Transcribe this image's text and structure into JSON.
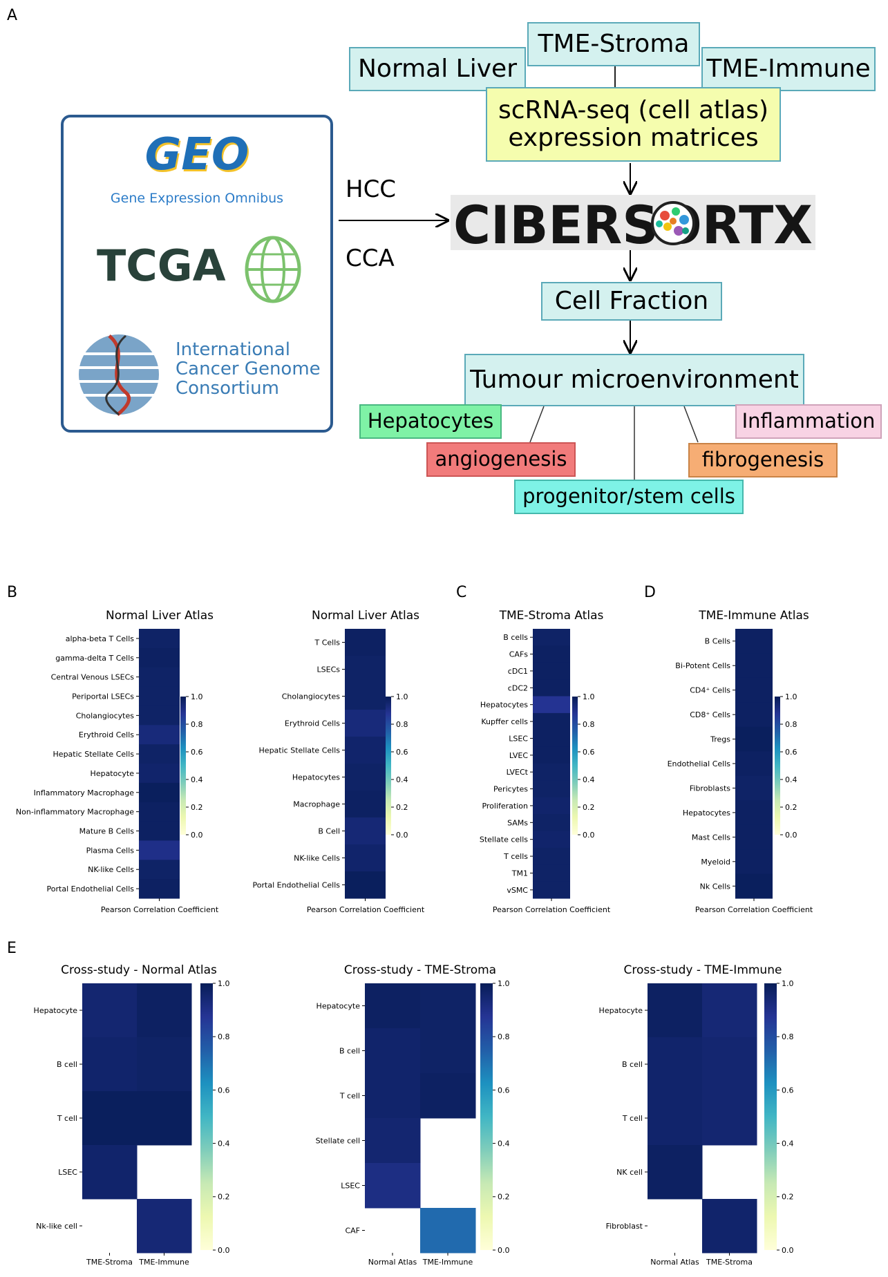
{
  "panel_letters": {
    "a": "A",
    "b": "B",
    "c": "C",
    "d": "D",
    "e": "E"
  },
  "diagram": {
    "atlases": {
      "normal": "Normal Liver",
      "stroma": "TME-Stroma",
      "immune": "TME-Immune"
    },
    "matrices": [
      "scRNA-seq (cell atlas)",
      "expression matrices"
    ],
    "sources": {
      "geo_logo": "GEO",
      "geo_sub": "Gene Expression Omnibus",
      "tcga": "TCGA",
      "icgc": [
        "International",
        "Cancer Genome",
        "Consortium"
      ]
    },
    "arrow_labels": {
      "top": "HCC",
      "bottom": "CCA"
    },
    "cibersort": "CIBERSORTX",
    "cell_fraction": "Cell Fraction",
    "tme": "Tumour microenvironment",
    "features": {
      "hepatocytes": "Hepatocytes",
      "angiogenesis": "angiogenesis",
      "progenitor": "progenitor/stem cells",
      "fibrogenesis": "fibrogenesis",
      "inflammation": "Inflammation"
    },
    "colors": {
      "box_teal": "#d4f1ef",
      "box_yellow": "#f5fdae",
      "hepatocytes": "#7ff2a6",
      "angiogenesis": "#f17b7b",
      "progenitor": "#7ef2e6",
      "fibrogenesis": "#f6ad74",
      "inflammation": "#f8d3e4"
    }
  },
  "colorbar": {
    "ticks_small": [
      "1.0",
      "0.8",
      "0.6",
      "0.4",
      "0.2",
      "0.0"
    ],
    "ticks_large": [
      "1.0",
      "0.8",
      "0.6",
      "0.4",
      "0.2",
      "0.0"
    ]
  },
  "chart_data": [
    {
      "id": "b1",
      "type": "heatmap",
      "title": "Normal Liver Atlas",
      "xlabel": "Pearson Correlation Coefficient",
      "vmin": 0,
      "vmax": 1,
      "rows": [
        "alpha-beta T Cells",
        "gamma-delta T Cells",
        "Central Venous LSECs",
        "Periportal LSECs",
        "Cholangiocytes",
        "Erythroid Cells",
        "Hepatic Stellate Cells",
        "Hepatocyte",
        "Inflammatory Macrophage",
        "Non-inflammatory Macrophage",
        "Mature B Cells",
        "Plasma Cells",
        "NK-like Cells",
        "Portal Endothelial Cells"
      ],
      "values": [
        0.97,
        0.98,
        0.97,
        0.97,
        0.97,
        0.93,
        0.97,
        0.96,
        0.99,
        0.98,
        0.98,
        0.9,
        0.97,
        0.98
      ]
    },
    {
      "id": "b2",
      "type": "heatmap",
      "title": "Normal Liver Atlas",
      "xlabel": "Pearson Correlation Coefficient",
      "vmin": 0,
      "vmax": 1,
      "rows": [
        "T Cells",
        "LSECs",
        "Cholangiocytes",
        "Erythroid Cells",
        "Hepatic Stellate Cells",
        "Hepatocytes",
        "Macrophage",
        "B Cell",
        "NK-like Cells",
        "Portal Endothelial Cells"
      ],
      "values": [
        0.98,
        0.97,
        0.97,
        0.93,
        0.96,
        0.97,
        0.98,
        0.94,
        0.96,
        0.99
      ]
    },
    {
      "id": "c",
      "type": "heatmap",
      "title": "TME-Stroma Atlas",
      "xlabel": "Pearson Correlation Coefficient",
      "vmin": 0,
      "vmax": 1,
      "rows": [
        "B cells",
        "CAFs",
        "cDC1",
        "cDC2",
        "Hepatocytes",
        "Kupffer cells",
        "LSEC",
        "LVEC",
        "LVECt",
        "Pericytes",
        "Proliferation",
        "SAMs",
        "Stellate cells",
        "T cells",
        "TM1",
        "vSMC"
      ],
      "values": [
        0.97,
        0.98,
        0.98,
        0.98,
        0.88,
        0.98,
        0.98,
        0.98,
        0.97,
        0.97,
        0.96,
        0.97,
        0.96,
        0.97,
        0.97,
        0.97
      ]
    },
    {
      "id": "d",
      "type": "heatmap",
      "title": "TME-Immune Atlas",
      "xlabel": "Pearson Correlation Coefficient",
      "vmin": 0,
      "vmax": 1,
      "rows": [
        "B Cells",
        "Bi-Potent Cells",
        "CD4⁺ Cells",
        "CD8⁺ Cells",
        "Tregs",
        "Endothelial Cells",
        "Fibroblasts",
        "Hepatocytes",
        "Mast Cells",
        "Myeloid",
        "Nk Cells"
      ],
      "values": [
        0.98,
        0.98,
        0.98,
        0.98,
        0.99,
        0.98,
        0.97,
        0.98,
        0.98,
        0.98,
        0.99
      ]
    },
    {
      "id": "e1",
      "type": "heatmap",
      "title": "Cross-study - Normal Atlas",
      "vmin": 0,
      "vmax": 1,
      "rows": [
        "Hepatocyte",
        "B cell",
        "T cell",
        "LSEC",
        "Nk-like cell"
      ],
      "columns": [
        "TME-Stroma",
        "TME-Immune"
      ],
      "values": [
        [
          0.95,
          0.98
        ],
        [
          0.96,
          0.97
        ],
        [
          0.99,
          0.99
        ],
        [
          0.96,
          null
        ],
        [
          null,
          0.94
        ]
      ]
    },
    {
      "id": "e2",
      "type": "heatmap",
      "title": "Cross-study - TME-Stroma",
      "vmin": 0,
      "vmax": 1,
      "rows": [
        "Hepatocyte",
        "B cell",
        "T cell",
        "Stellate cell",
        "LSEC",
        "CAF"
      ],
      "columns": [
        "Normal Atlas",
        "TME-Immune"
      ],
      "values": [
        [
          0.98,
          0.97
        ],
        [
          0.96,
          0.97
        ],
        [
          0.96,
          0.98
        ],
        [
          0.95,
          null
        ],
        [
          0.91,
          null
        ],
        [
          null,
          0.72
        ]
      ]
    },
    {
      "id": "e3",
      "type": "heatmap",
      "title": "Cross-study - TME-Immune",
      "vmin": 0,
      "vmax": 1,
      "rows": [
        "Hepatocyte",
        "B cell",
        "T cell",
        "NK cell",
        "Fibroblast"
      ],
      "columns": [
        "Normal Atlas",
        "TME-Stroma"
      ],
      "values": [
        [
          0.98,
          0.94
        ],
        [
          0.96,
          0.95
        ],
        [
          0.96,
          0.95
        ],
        [
          0.98,
          null
        ],
        [
          null,
          0.96
        ]
      ]
    }
  ]
}
